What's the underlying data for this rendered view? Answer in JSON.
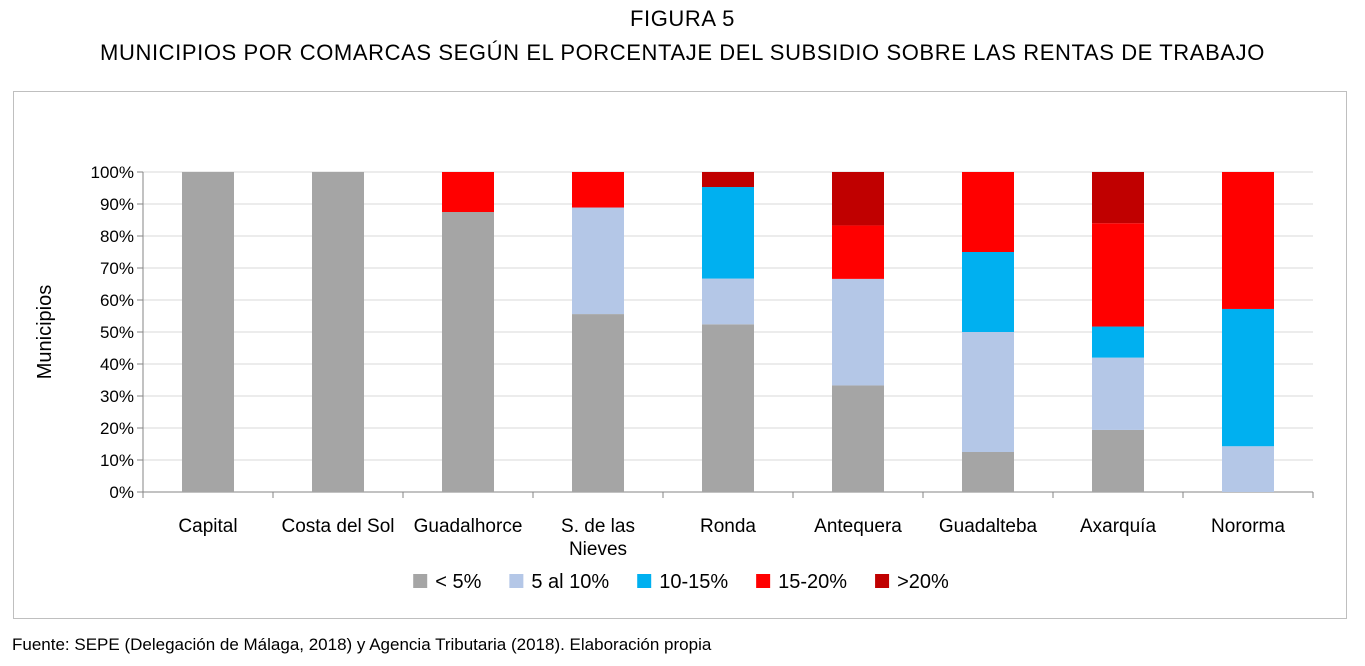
{
  "figure": {
    "number": "FIGURA 5",
    "title": "MUNICIPIOS POR COMARCAS SEGÚN EL PORCENTAJE DEL SUBSIDIO SOBRE LAS RENTAS DE TRABAJO"
  },
  "source": "Fuente: SEPE (Delegación de Málaga, 2018) y Agencia Tributaria (2018). Elaboración propia",
  "chart_data": {
    "type": "bar",
    "stacked": true,
    "percent": true,
    "title": "",
    "xlabel": "",
    "ylabel": "Municipios",
    "ylim": [
      0,
      100
    ],
    "yticks": [
      "0%",
      "10%",
      "20%",
      "30%",
      "40%",
      "50%",
      "60%",
      "70%",
      "80%",
      "90%",
      "100%"
    ],
    "grid": true,
    "legend_position": "bottom",
    "categories": [
      "Capital",
      "Costa del Sol",
      "Guadalhorce",
      "S. de las Nieves",
      "Ronda",
      "Antequera",
      "Guadalteba",
      "Axarquía",
      "Nororma"
    ],
    "category_labels": [
      [
        "Capital"
      ],
      [
        "Costa del Sol"
      ],
      [
        "Guadalhorce"
      ],
      [
        "S. de las",
        "Nieves"
      ],
      [
        "Ronda"
      ],
      [
        "Antequera"
      ],
      [
        "Guadalteba"
      ],
      [
        "Axarquía"
      ],
      [
        "Nororma"
      ]
    ],
    "series": [
      {
        "name": "< 5%",
        "color": "#a5a5a5",
        "values": [
          100,
          100,
          87.5,
          55.6,
          52.4,
          33.3,
          12.5,
          19.4,
          0
        ]
      },
      {
        "name": "5 al 10%",
        "color": "#b4c7e7",
        "values": [
          0,
          0,
          0,
          33.3,
          14.3,
          33.3,
          37.5,
          22.6,
          14.3
        ]
      },
      {
        "name": "10-15%",
        "color": "#00b0f0",
        "values": [
          0,
          0,
          0,
          0,
          28.6,
          0,
          25,
          9.7,
          42.9
        ]
      },
      {
        "name": "15-20%",
        "color": "#ff0000",
        "values": [
          0,
          0,
          12.5,
          11.1,
          0,
          16.7,
          25,
          32.3,
          42.8
        ]
      },
      {
        "name": ">20%",
        "color": "#c00000",
        "values": [
          0,
          0,
          0,
          0,
          4.7,
          16.7,
          0,
          16,
          0
        ]
      }
    ]
  }
}
